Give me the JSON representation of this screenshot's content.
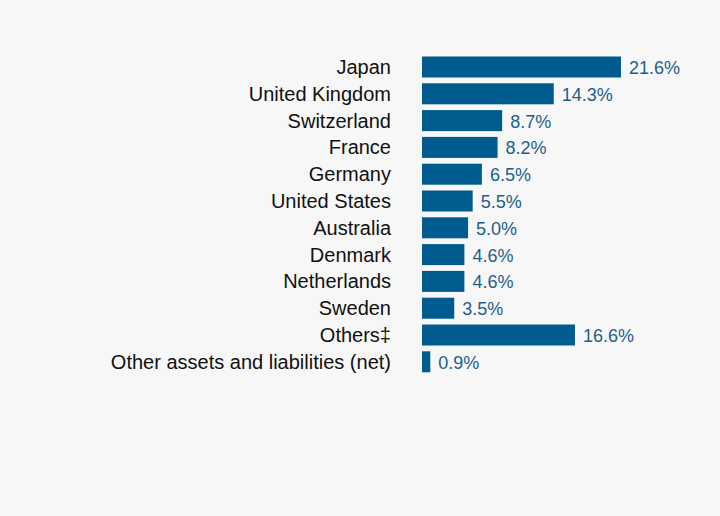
{
  "chart_data": {
    "type": "bar",
    "orientation": "horizontal",
    "categories": [
      "Japan",
      "United Kingdom",
      "Switzerland",
      "France",
      "Germany",
      "United States",
      "Australia",
      "Denmark",
      "Netherlands",
      "Sweden",
      "Others‡",
      "Other assets and liabilities (net)"
    ],
    "values": [
      21.6,
      14.3,
      8.7,
      8.2,
      6.5,
      5.5,
      5.0,
      4.6,
      4.6,
      3.5,
      16.6,
      0.9
    ],
    "value_labels": [
      "21.6%",
      "14.3%",
      "8.7%",
      "8.2%",
      "6.5%",
      "5.5%",
      "5.0%",
      "4.6%",
      "4.6%",
      "3.5%",
      "16.6%",
      "0.9%"
    ],
    "color": "#005b8f",
    "xlim": [
      0,
      21.6
    ],
    "data_labels": true,
    "tick_labels": "y",
    "grid": false
  }
}
